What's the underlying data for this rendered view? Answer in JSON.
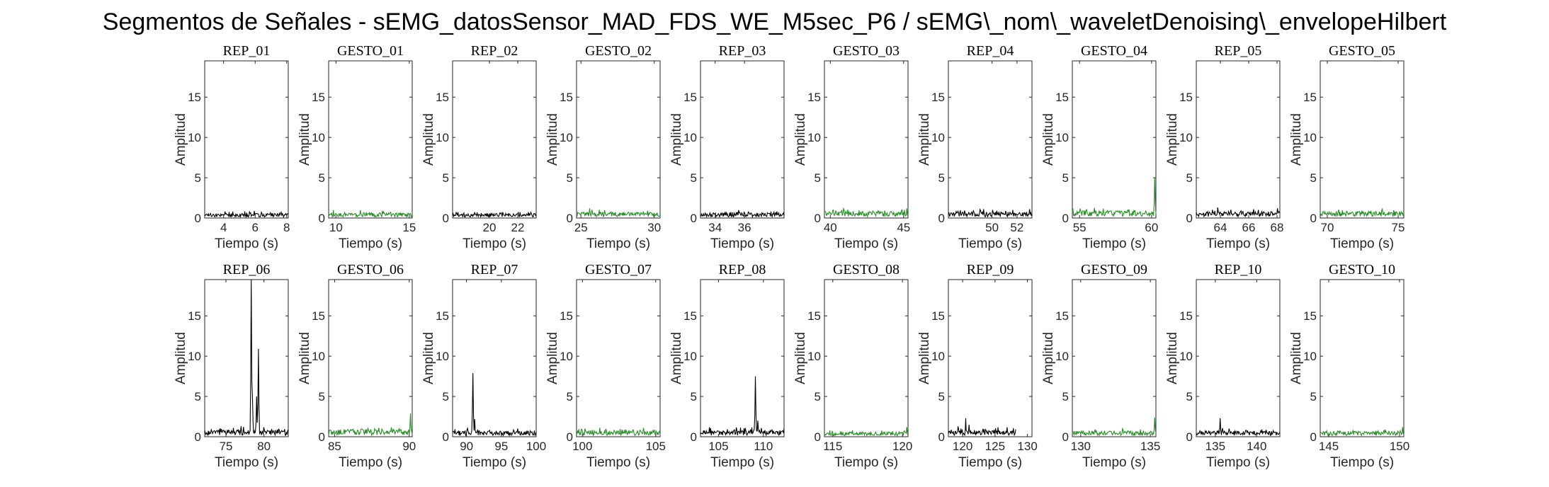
{
  "figure_title": "Segmentos de Señales - sEMG_datosSensor_MAD_FDS_WE_M5sec_P6 / sEMG\\_nom\\_waveletDenoising\\_envelopeHilbert",
  "colors": {
    "rep": "#000000",
    "gesto": "#2e8b2e",
    "axis": "#262626"
  },
  "chart_data": [
    {
      "type": "line",
      "title": "REP_01",
      "xlabel": "Tiempo (s)",
      "ylabel": "Amplitud",
      "xlim": [
        2.8,
        8.1
      ],
      "ylim": [
        0,
        19.5
      ],
      "xticks": [
        4,
        6,
        8
      ],
      "yticks": [
        0,
        5,
        10,
        15
      ],
      "color": "rep",
      "baseline": 0.35,
      "noise": 0.3,
      "peaks": []
    },
    {
      "type": "line",
      "title": "GESTO_01",
      "xlabel": "Tiempo (s)",
      "ylabel": "Amplitud",
      "xlim": [
        9.5,
        15.2
      ],
      "ylim": [
        0,
        19.5
      ],
      "xticks": [
        10,
        15
      ],
      "yticks": [
        0,
        5,
        10,
        15
      ],
      "color": "gesto",
      "baseline": 0.4,
      "noise": 0.35,
      "peaks": []
    },
    {
      "type": "line",
      "title": "REP_02",
      "xlabel": "Tiempo (s)",
      "ylabel": "Amplitud",
      "xlim": [
        17.4,
        23.3
      ],
      "ylim": [
        0,
        19.5
      ],
      "xticks": [
        20,
        22
      ],
      "yticks": [
        0,
        5,
        10,
        15
      ],
      "color": "rep",
      "baseline": 0.35,
      "noise": 0.3,
      "peaks": []
    },
    {
      "type": "line",
      "title": "GESTO_02",
      "xlabel": "Tiempo (s)",
      "ylabel": "Amplitud",
      "xlim": [
        24.7,
        30.4
      ],
      "ylim": [
        0,
        19.5
      ],
      "xticks": [
        25,
        30
      ],
      "yticks": [
        0,
        5,
        10,
        15
      ],
      "color": "gesto",
      "baseline": 0.45,
      "noise": 0.4,
      "peaks": [
        [
          25.6,
          1.2
        ]
      ]
    },
    {
      "type": "line",
      "title": "REP_03",
      "xlabel": "Tiempo (s)",
      "ylabel": "Amplitud",
      "xlim": [
        33,
        38.7
      ],
      "ylim": [
        0,
        19.5
      ],
      "xticks": [
        34,
        36
      ],
      "yticks": [
        0,
        5,
        10,
        15
      ],
      "color": "rep",
      "baseline": 0.4,
      "noise": 0.35,
      "peaks": []
    },
    {
      "type": "line",
      "title": "GESTO_03",
      "xlabel": "Tiempo (s)",
      "ylabel": "Amplitud",
      "xlim": [
        39.6,
        45.3
      ],
      "ylim": [
        0,
        19.5
      ],
      "xticks": [
        40,
        45
      ],
      "yticks": [
        0,
        5,
        10,
        15
      ],
      "color": "gesto",
      "baseline": 0.5,
      "noise": 0.4,
      "peaks": [
        [
          40.2,
          1.0
        ],
        [
          45.2,
          1.2
        ]
      ]
    },
    {
      "type": "line",
      "title": "REP_04",
      "xlabel": "Tiempo (s)",
      "ylabel": "Amplitud",
      "xlim": [
        46.5,
        53.2
      ],
      "ylim": [
        0,
        19.5
      ],
      "xticks": [
        50,
        52
      ],
      "yticks": [
        0,
        5,
        10,
        15
      ],
      "color": "rep",
      "baseline": 0.45,
      "noise": 0.4,
      "peaks": [
        [
          48.5,
          0.9
        ],
        [
          49.3,
          1.1
        ]
      ]
    },
    {
      "type": "line",
      "title": "GESTO_04",
      "xlabel": "Tiempo (s)",
      "ylabel": "Amplitud",
      "xlim": [
        54.5,
        60.3
      ],
      "ylim": [
        0,
        19.5
      ],
      "xticks": [
        55,
        60
      ],
      "yticks": [
        0,
        5,
        10,
        15
      ],
      "color": "gesto",
      "baseline": 0.55,
      "noise": 0.4,
      "peaks": [
        [
          60.2,
          5.0
        ]
      ]
    },
    {
      "type": "line",
      "title": "REP_05",
      "xlabel": "Tiempo (s)",
      "ylabel": "Amplitud",
      "xlim": [
        62.3,
        68.2
      ],
      "ylim": [
        0,
        19.5
      ],
      "xticks": [
        64,
        66,
        68
      ],
      "yticks": [
        0,
        5,
        10,
        15
      ],
      "color": "rep",
      "baseline": 0.5,
      "noise": 0.4,
      "peaks": [
        [
          63.8,
          1.3
        ]
      ]
    },
    {
      "type": "line",
      "title": "GESTO_05",
      "xlabel": "Tiempo (s)",
      "ylabel": "Amplitud",
      "xlim": [
        69.5,
        75.4
      ],
      "ylim": [
        0,
        19.5
      ],
      "xticks": [
        70,
        75
      ],
      "yticks": [
        0,
        5,
        10,
        15
      ],
      "color": "gesto",
      "baseline": 0.5,
      "noise": 0.4,
      "peaks": []
    },
    {
      "type": "line",
      "title": "REP_06",
      "xlabel": "Tiempo (s)",
      "ylabel": "Amplitud",
      "xlim": [
        72.2,
        83.2
      ],
      "ylim": [
        0,
        19.5
      ],
      "xticks": [
        75,
        80
      ],
      "yticks": [
        0,
        5,
        10,
        15
      ],
      "color": "rep",
      "baseline": 0.5,
      "noise": 0.5,
      "peaks": [
        [
          76.0,
          1.1
        ],
        [
          77.0,
          1.3
        ],
        [
          78.3,
          19.5
        ],
        [
          78.5,
          5.0
        ],
        [
          79.0,
          5.0
        ],
        [
          79.3,
          10.9
        ]
      ]
    },
    {
      "type": "line",
      "title": "GESTO_06",
      "xlabel": "Tiempo (s)",
      "ylabel": "Amplitud",
      "xlim": [
        84.6,
        90.2
      ],
      "ylim": [
        0,
        19.5
      ],
      "xticks": [
        85,
        90
      ],
      "yticks": [
        0,
        5,
        10,
        15
      ],
      "color": "gesto",
      "baseline": 0.55,
      "noise": 0.4,
      "peaks": [
        [
          90.1,
          2.9
        ]
      ]
    },
    {
      "type": "line",
      "title": "REP_07",
      "xlabel": "Tiempo (s)",
      "ylabel": "Amplitud",
      "xlim": [
        88,
        100
      ],
      "ylim": [
        0,
        19.5
      ],
      "xticks": [
        90,
        95,
        100
      ],
      "yticks": [
        0,
        5,
        10,
        15
      ],
      "color": "rep",
      "baseline": 0.45,
      "noise": 0.45,
      "peaks": [
        [
          90.9,
          7.9
        ],
        [
          91.2,
          2.2
        ]
      ]
    },
    {
      "type": "line",
      "title": "GESTO_07",
      "xlabel": "Tiempo (s)",
      "ylabel": "Amplitud",
      "xlim": [
        99.6,
        105.3
      ],
      "ylim": [
        0,
        19.5
      ],
      "xticks": [
        100,
        105
      ],
      "yticks": [
        0,
        5,
        10,
        15
      ],
      "color": "gesto",
      "baseline": 0.5,
      "noise": 0.4,
      "peaks": []
    },
    {
      "type": "line",
      "title": "REP_08",
      "xlabel": "Tiempo (s)",
      "ylabel": "Amplitud",
      "xlim": [
        103,
        112.3
      ],
      "ylim": [
        0,
        19.5
      ],
      "xticks": [
        105,
        110
      ],
      "yticks": [
        0,
        5,
        10,
        15
      ],
      "color": "rep",
      "baseline": 0.5,
      "noise": 0.45,
      "peaks": [
        [
          109.1,
          7.5
        ],
        [
          109.4,
          2.0
        ]
      ]
    },
    {
      "type": "line",
      "title": "GESTO_08",
      "xlabel": "Tiempo (s)",
      "ylabel": "Amplitud",
      "xlim": [
        114.4,
        120.4
      ],
      "ylim": [
        0,
        19.5
      ],
      "xticks": [
        115,
        120
      ],
      "yticks": [
        0,
        5,
        10,
        15
      ],
      "color": "gesto",
      "baseline": 0.35,
      "noise": 0.3,
      "peaks": [
        [
          120.3,
          1.2
        ]
      ]
    },
    {
      "type": "line",
      "title": "REP_09",
      "xlabel": "Tiempo (s)",
      "ylabel": "Amplitud",
      "xlim": [
        117.8,
        130.7
      ],
      "ylim": [
        0,
        19.5
      ],
      "xticks": [
        120,
        125,
        130
      ],
      "yticks": [
        0,
        5,
        10,
        15
      ],
      "color": "rep",
      "baseline": 0.5,
      "noise": 0.5,
      "peaks": [
        [
          120.5,
          2.3
        ],
        [
          121.0,
          1.5
        ]
      ],
      "xend": 128.2
    },
    {
      "type": "line",
      "title": "GESTO_09",
      "xlabel": "Tiempo (s)",
      "ylabel": "Amplitud",
      "xlim": [
        129.4,
        135.4
      ],
      "ylim": [
        0,
        19.5
      ],
      "xticks": [
        130,
        135
      ],
      "yticks": [
        0,
        5,
        10,
        15
      ],
      "color": "gesto",
      "baseline": 0.45,
      "noise": 0.35,
      "peaks": [
        [
          135.3,
          2.4
        ]
      ]
    },
    {
      "type": "line",
      "title": "REP_10",
      "xlabel": "Tiempo (s)",
      "ylabel": "Amplitud",
      "xlim": [
        132.7,
        142.8
      ],
      "ylim": [
        0,
        19.5
      ],
      "xticks": [
        135,
        140
      ],
      "yticks": [
        0,
        5,
        10,
        15
      ],
      "color": "rep",
      "baseline": 0.45,
      "noise": 0.4,
      "peaks": [
        [
          135.6,
          2.3
        ]
      ]
    },
    {
      "type": "line",
      "title": "GESTO_10",
      "xlabel": "Tiempo (s)",
      "ylabel": "Amplitud",
      "xlim": [
        144.4,
        150.3
      ],
      "ylim": [
        0,
        19.5
      ],
      "xticks": [
        145,
        150
      ],
      "yticks": [
        0,
        5,
        10,
        15
      ],
      "color": "gesto",
      "baseline": 0.4,
      "noise": 0.35,
      "peaks": [
        [
          150.2,
          1.2
        ]
      ]
    }
  ]
}
